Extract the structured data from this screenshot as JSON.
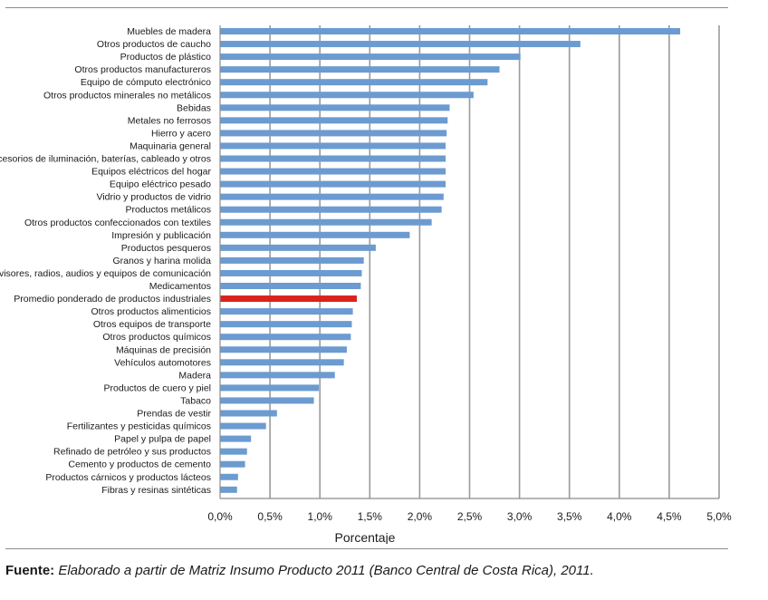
{
  "chart_data": {
    "type": "bar",
    "orientation": "horizontal",
    "xlabel": "Porcentaje",
    "ylabel": "",
    "xlim": [
      0,
      5.0
    ],
    "xtick_labels": [
      "0,0%",
      "0,5%",
      "1,0%",
      "1,5%",
      "2,0%",
      "2,5%",
      "3,0%",
      "3,5%",
      "4,0%",
      "4,5%",
      "5,0%"
    ],
    "grid": "vertical",
    "categories": [
      "Muebles de madera",
      "Otros productos de caucho",
      "Productos de plástico",
      "Otros productos manufactureros",
      "Equipo de cómputo electrónico",
      "Otros productos minerales no metálicos",
      "Bebidas",
      "Metales no ferrosos",
      "Hierro y acero",
      "Maquinaria general",
      "Accesorios de iluminación, baterías, cableado y otros",
      "Equipos eléctricos del hogar",
      "Equipo eléctrico pesado",
      "Vidrio y productos de vidrio",
      "Productos metálicos",
      "Otros productos confeccionados con textiles",
      "Impresión y publicación",
      "Productos pesqueros",
      "Granos y harina molida",
      "Televisores, radios, audios y equipos de comunicación",
      "Medicamentos",
      "Promedio ponderado de productos industriales",
      "Otros productos alimenticios",
      "Otros equipos de transporte",
      "Otros productos químicos",
      "Máquinas de precisión",
      "Vehículos automotores",
      "Madera",
      "Productos de cuero y piel",
      "Tabaco",
      "Prendas de vestir",
      "Fertilizantes y pesticidas químicos",
      "Papel y pulpa de papel",
      "Refinado de petróleo y sus productos",
      "Cemento y productos de cemento",
      "Productos cárnicos y productos lácteos",
      "Fibras y resinas sintéticas"
    ],
    "values": [
      4.61,
      3.61,
      3.01,
      2.8,
      2.68,
      2.54,
      2.3,
      2.28,
      2.27,
      2.26,
      2.26,
      2.26,
      2.26,
      2.24,
      2.22,
      2.12,
      1.9,
      1.56,
      1.44,
      1.42,
      1.41,
      1.37,
      1.33,
      1.32,
      1.31,
      1.27,
      1.24,
      1.15,
      0.99,
      0.94,
      0.57,
      0.46,
      0.31,
      0.27,
      0.25,
      0.18,
      0.17
    ],
    "highlight_category": "Promedio ponderado de productos industriales",
    "colors": {
      "bar": "#6b9bd1",
      "highlight": "#d9231d",
      "grid": "#9a9a9a",
      "axis": "#8c8c8c"
    }
  },
  "source": {
    "label": "Fuente:",
    "text": "Elaborado a partir de Matriz Insumo Producto 2011 (Banco Central de Costa Rica), 2011."
  }
}
